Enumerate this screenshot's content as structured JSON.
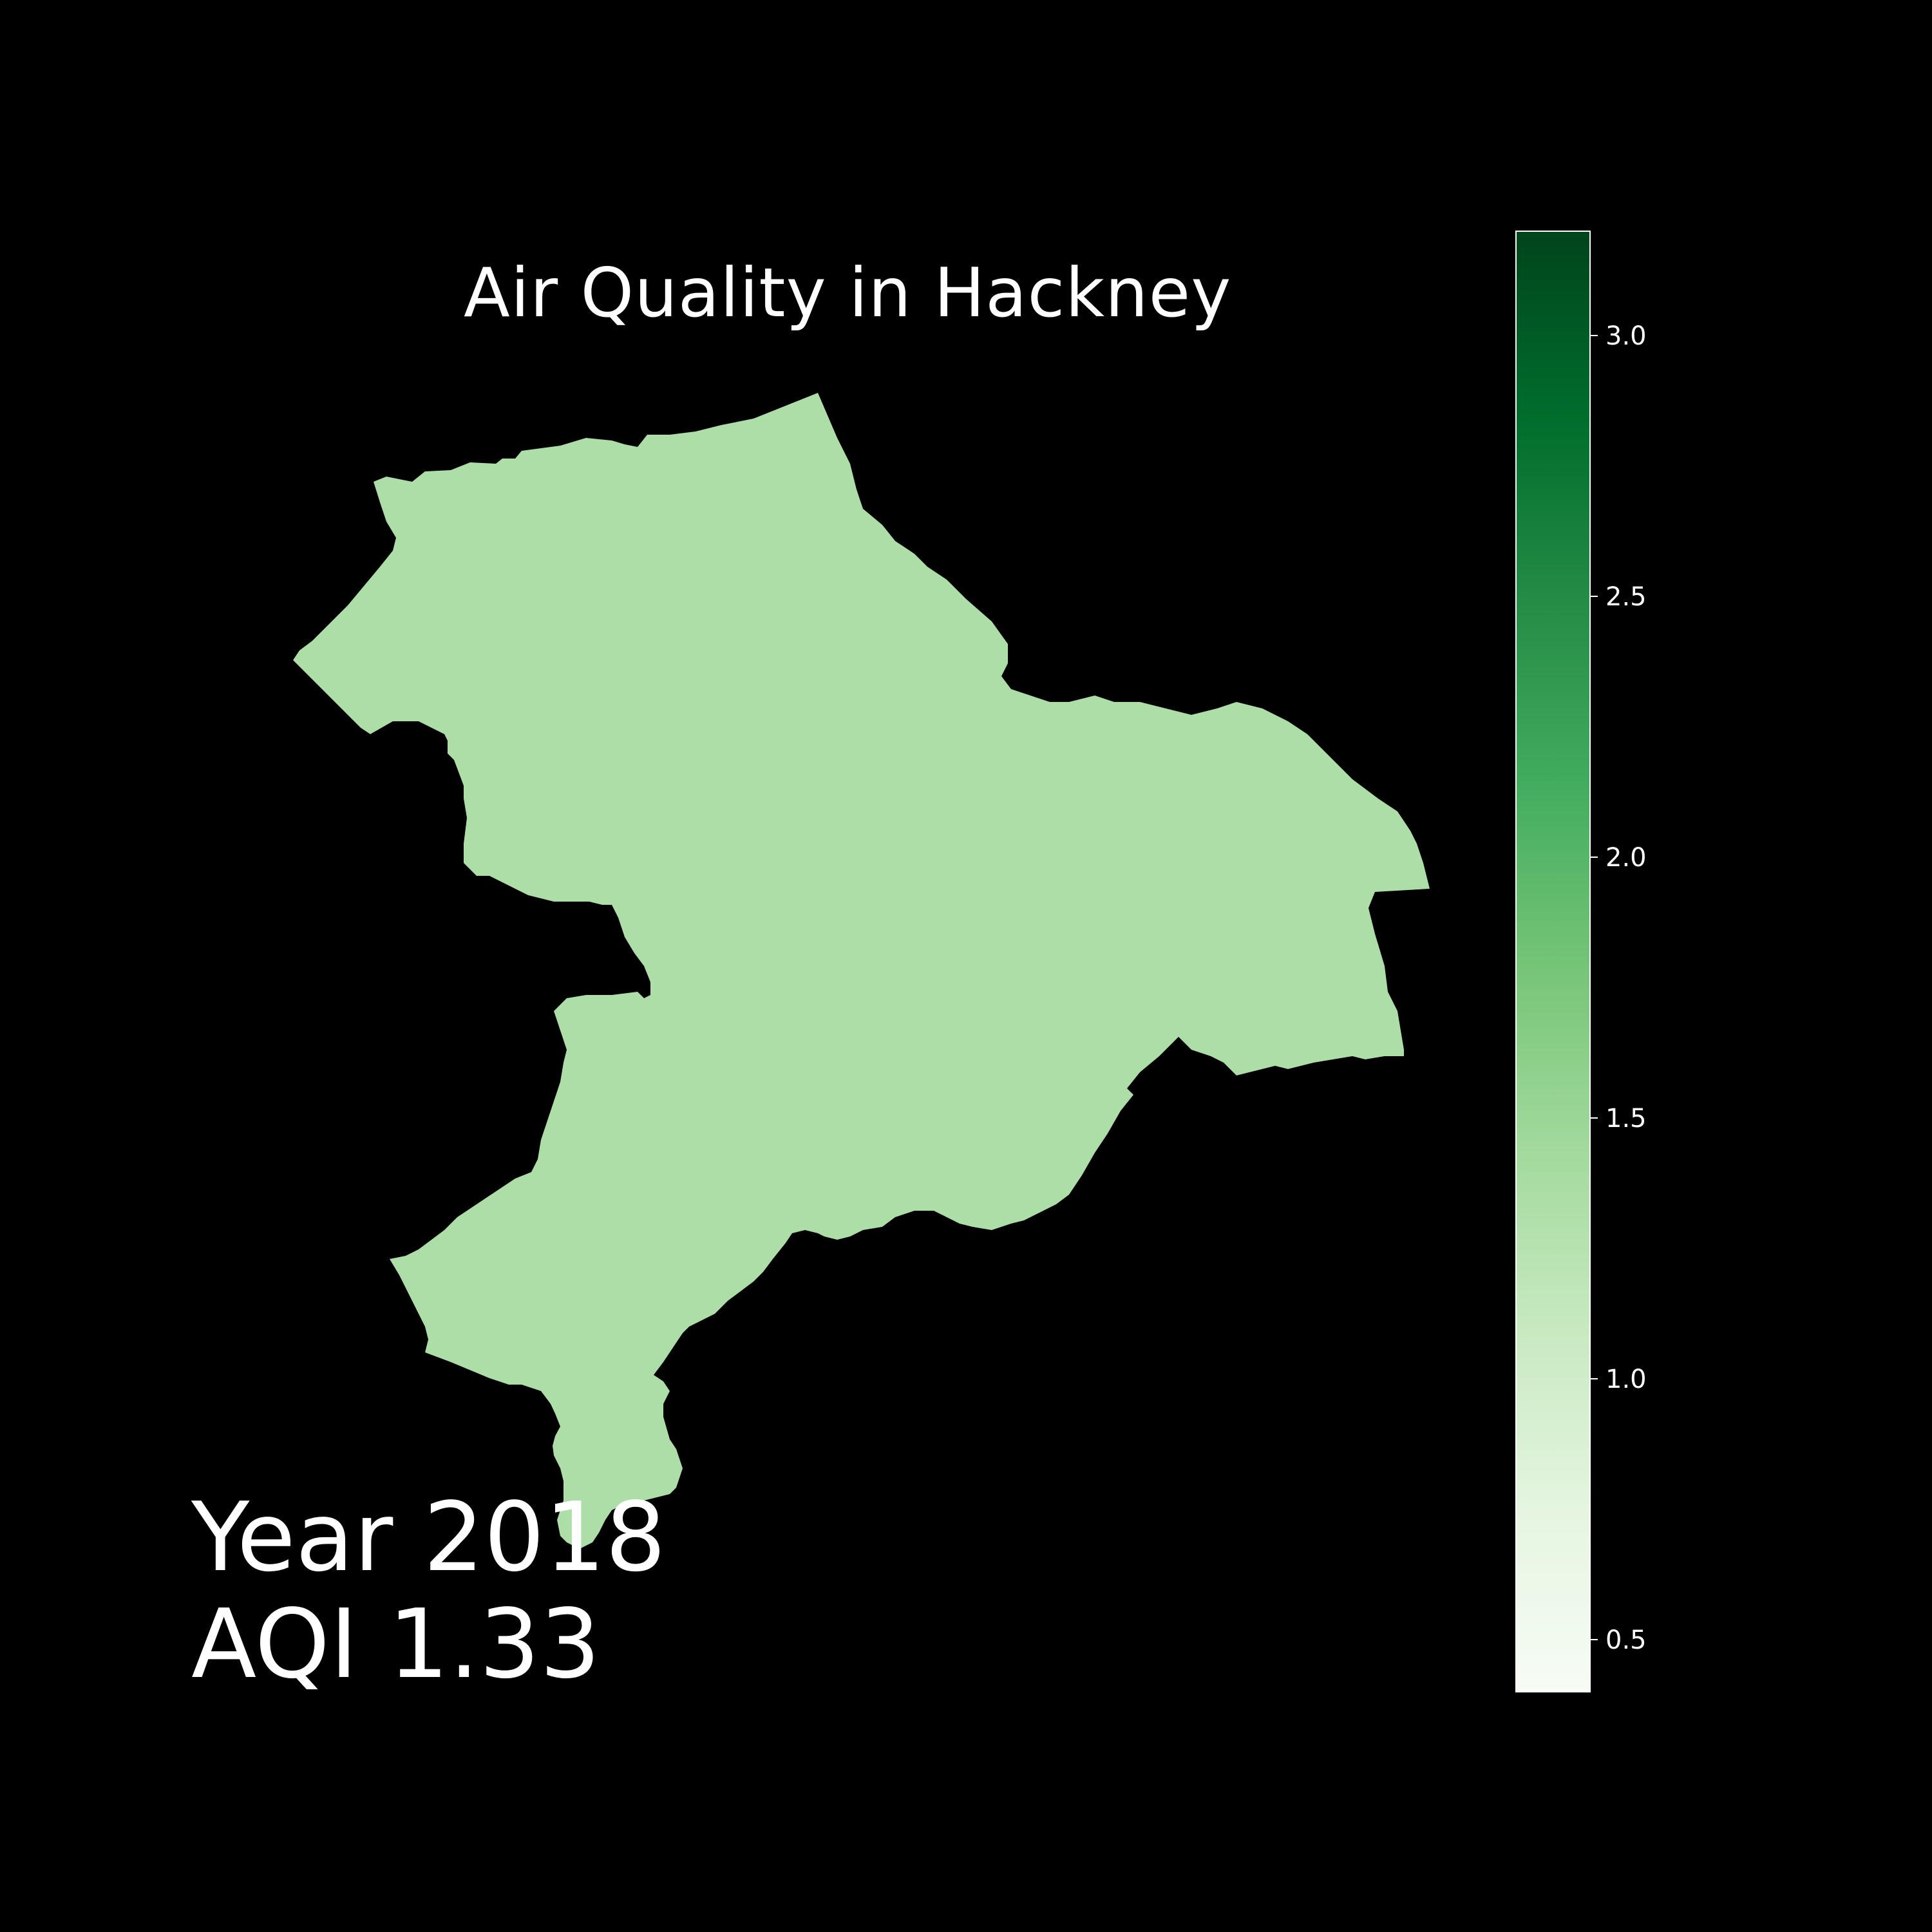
{
  "map": {
    "title": "Air Quality in Hackney",
    "region_fill": "#aedea7",
    "background": "#000000"
  },
  "annotations": {
    "year_text": "Year 2018",
    "aqi_text": "AQI 1.33"
  },
  "colorbar": {
    "colormap": "Greens",
    "min": 0.4,
    "max": 3.2,
    "ticks": [
      {
        "value": 0.5,
        "label": "0.5"
      },
      {
        "value": 1.0,
        "label": "1.0"
      },
      {
        "value": 1.5,
        "label": "1.5"
      },
      {
        "value": 2.0,
        "label": "2.0"
      },
      {
        "value": 2.5,
        "label": "2.5"
      },
      {
        "value": 3.0,
        "label": "3.0"
      }
    ],
    "color_stops": [
      "#f7fcf5",
      "#e5f5e0",
      "#c7e9c0",
      "#a1d99b",
      "#74c476",
      "#41ab5d",
      "#238b45",
      "#006d2c",
      "#00441b"
    ]
  },
  "chart_data": {
    "type": "heatmap",
    "title": "Air Quality in Hackney",
    "regions": [
      {
        "name": "Hackney",
        "year": 2018,
        "aqi": 1.33
      }
    ],
    "colorbar_range": [
      0.4,
      3.2
    ]
  }
}
